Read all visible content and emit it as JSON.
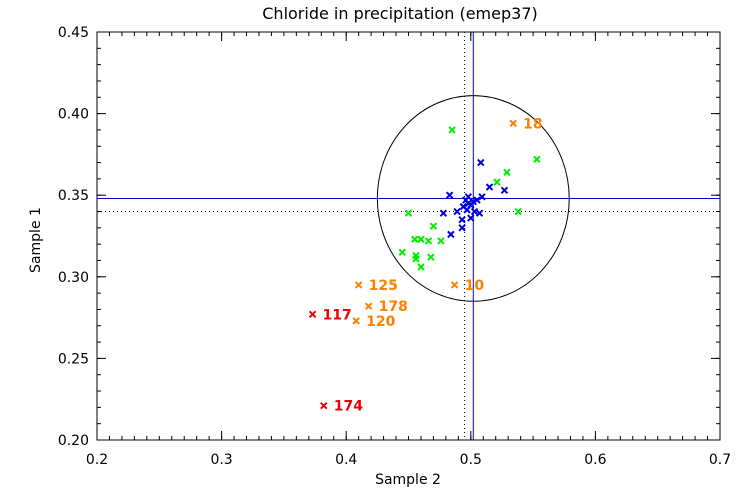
{
  "chart_data": {
    "type": "scatter",
    "title": "Chloride in precipitation (emep37)",
    "xlabel": "Sample 2",
    "ylabel": "Sample 1",
    "xlim": [
      0.2,
      0.7
    ],
    "ylim": [
      0.2,
      0.45
    ],
    "xticks": [
      "0.2",
      "0.3",
      "0.4",
      "0.5",
      "0.6",
      "0.7"
    ],
    "yticks": [
      "0.20",
      "0.25",
      "0.30",
      "0.35",
      "0.40",
      "0.45"
    ],
    "reference_lines": {
      "mean_x": 0.502,
      "mean_y": 0.348,
      "mean_color": "#0000cc",
      "median_x": 0.495,
      "median_y": 0.34
    },
    "ellipse": {
      "cx": 0.502,
      "cy": 0.348,
      "rx": 0.077,
      "ry": 0.063
    },
    "colors": {
      "blue": "#0000dd",
      "green": "#00ee00",
      "orange": "#ff7f00",
      "red": "#ee0000"
    },
    "series": [
      {
        "name": "blue",
        "points": [
          [
            0.483,
            0.35
          ],
          [
            0.508,
            0.37
          ],
          [
            0.515,
            0.355
          ],
          [
            0.527,
            0.353
          ],
          [
            0.507,
            0.339
          ],
          [
            0.489,
            0.34
          ],
          [
            0.496,
            0.347
          ],
          [
            0.498,
            0.345
          ],
          [
            0.5,
            0.344
          ],
          [
            0.502,
            0.346
          ],
          [
            0.494,
            0.343
          ],
          [
            0.497,
            0.341
          ],
          [
            0.503,
            0.34
          ],
          [
            0.505,
            0.347
          ],
          [
            0.509,
            0.349
          ],
          [
            0.493,
            0.335
          ],
          [
            0.493,
            0.33
          ],
          [
            0.484,
            0.326
          ],
          [
            0.478,
            0.339
          ],
          [
            0.5,
            0.336
          ],
          [
            0.498,
            0.349
          ]
        ]
      },
      {
        "name": "green",
        "points": [
          [
            0.485,
            0.39
          ],
          [
            0.553,
            0.372
          ],
          [
            0.529,
            0.364
          ],
          [
            0.521,
            0.358
          ],
          [
            0.538,
            0.34
          ],
          [
            0.45,
            0.339
          ],
          [
            0.47,
            0.331
          ],
          [
            0.455,
            0.323
          ],
          [
            0.46,
            0.323
          ],
          [
            0.466,
            0.322
          ],
          [
            0.476,
            0.322
          ],
          [
            0.445,
            0.315
          ],
          [
            0.456,
            0.313
          ],
          [
            0.456,
            0.311
          ],
          [
            0.468,
            0.312
          ],
          [
            0.46,
            0.306
          ]
        ]
      },
      {
        "name": "orange-labeled",
        "points": [
          [
            0.534,
            0.394,
            "18"
          ],
          [
            0.41,
            0.295,
            "125"
          ],
          [
            0.487,
            0.295,
            "10"
          ],
          [
            0.418,
            0.282,
            "178"
          ],
          [
            0.408,
            0.273,
            "120"
          ]
        ]
      },
      {
        "name": "red-labeled",
        "points": [
          [
            0.373,
            0.277,
            "117"
          ],
          [
            0.382,
            0.221,
            "174"
          ]
        ]
      }
    ]
  }
}
